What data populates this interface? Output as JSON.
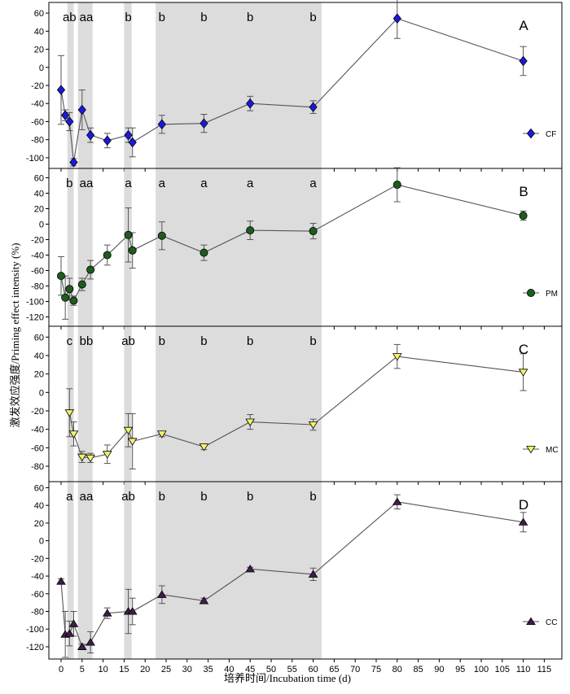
{
  "xlabel": "培养时间/Incubation time (d)",
  "ylabel": "激发效应强度/Priming effect intensity (%)",
  "x_ticks": [
    "0",
    "5",
    "10",
    "15",
    "20",
    "25",
    "30",
    "35",
    "40",
    "45",
    "50",
    "55",
    "60",
    "65",
    "70",
    "75",
    "80",
    "85",
    "90",
    "95",
    "100",
    "105",
    "110",
    "115"
  ],
  "shaded_day_ranges": [
    [
      1.5,
      3
    ],
    [
      4,
      7.5
    ],
    [
      15,
      16.8
    ],
    [
      22.5,
      62
    ]
  ],
  "chart_data": [
    {
      "type": "line",
      "panel": "A",
      "series_name": "CF",
      "marker": "diamond",
      "color": "#1a1adf",
      "x": [
        0,
        1,
        2,
        3,
        5,
        7,
        11,
        16,
        17,
        24,
        34,
        45,
        60,
        80,
        110
      ],
      "y": [
        -25,
        -53,
        -60,
        -105,
        -47,
        -75,
        -81,
        -75,
        -83,
        -63,
        -62,
        -40,
        -44,
        54,
        7
      ],
      "err": [
        38,
        6,
        10,
        4,
        22,
        8,
        8,
        8,
        16,
        10,
        10,
        8,
        7,
        22,
        16
      ],
      "ylim": [
        -110,
        70
      ],
      "yticks": [
        "60",
        "40",
        "20",
        "0",
        "-20",
        "-40",
        "-60",
        "-80",
        "-100"
      ],
      "letters": [
        {
          "x": 2,
          "text": "ab"
        },
        {
          "x": 6,
          "text": "aa"
        },
        {
          "x": 16,
          "text": "b"
        },
        {
          "x": 24,
          "text": "b"
        },
        {
          "x": 34,
          "text": "b"
        },
        {
          "x": 45,
          "text": "b"
        },
        {
          "x": 60,
          "text": "b"
        }
      ]
    },
    {
      "type": "line",
      "panel": "B",
      "series_name": "PM",
      "marker": "circle",
      "color": "#1e5c1e",
      "x": [
        0,
        1,
        2,
        3,
        5,
        7,
        11,
        16,
        17,
        24,
        34,
        45,
        60,
        80,
        110
      ],
      "y": [
        -67,
        -95,
        -84,
        -99,
        -78,
        -59,
        -40,
        -14,
        -34,
        -15,
        -37,
        -8,
        -9,
        51,
        11
      ],
      "err": [
        25,
        28,
        14,
        6,
        8,
        12,
        13,
        35,
        23,
        18,
        10,
        12,
        10,
        22,
        6
      ],
      "ylim": [
        -130,
        70
      ],
      "yticks": [
        "60",
        "40",
        "20",
        "0",
        "-20",
        "-40",
        "-60",
        "-80",
        "-100",
        "-120"
      ],
      "letters": [
        {
          "x": 2,
          "text": "b"
        },
        {
          "x": 6,
          "text": "aa"
        },
        {
          "x": 16,
          "text": "a"
        },
        {
          "x": 24,
          "text": "a"
        },
        {
          "x": 34,
          "text": "a"
        },
        {
          "x": 45,
          "text": "a"
        },
        {
          "x": 60,
          "text": "a"
        }
      ]
    },
    {
      "type": "line",
      "panel": "C",
      "series_name": "MC",
      "marker": "triangle-down",
      "color": "#f3f36a",
      "x": [
        2,
        3,
        5,
        7,
        11,
        16,
        17,
        24,
        34,
        45,
        60,
        80,
        110
      ],
      "y": [
        -22,
        -45,
        -70,
        -71,
        -67,
        -41,
        -53,
        -45,
        -59,
        -32,
        -35,
        39,
        22
      ],
      "err": [
        26,
        13,
        6,
        5,
        10,
        18,
        30,
        3,
        3,
        8,
        6,
        13,
        20
      ],
      "ylim": [
        -95,
        70
      ],
      "yticks": [
        "60",
        "40",
        "20",
        "0",
        "-20",
        "-40",
        "-60",
        "-80"
      ],
      "letters": [
        {
          "x": 2,
          "text": "c"
        },
        {
          "x": 6,
          "text": "bb"
        },
        {
          "x": 16,
          "text": "ab"
        },
        {
          "x": 24,
          "text": "b"
        },
        {
          "x": 34,
          "text": "b"
        },
        {
          "x": 45,
          "text": "b"
        },
        {
          "x": 60,
          "text": "b"
        }
      ]
    },
    {
      "type": "line",
      "panel": "D",
      "series_name": "CC",
      "marker": "triangle-up",
      "color": "#3f1d4a",
      "x": [
        0,
        1,
        2,
        3,
        5,
        7,
        11,
        16,
        17,
        24,
        34,
        45,
        60,
        80,
        110
      ],
      "y": [
        -46,
        -106,
        -105,
        -94,
        -120,
        -115,
        -82,
        -80,
        -80,
        -61,
        -68,
        -32,
        -38,
        44,
        21
      ],
      "err": [
        3,
        26,
        14,
        14,
        3,
        12,
        6,
        25,
        15,
        10,
        3,
        2,
        7,
        8,
        11
      ],
      "ylim": [
        -132,
        65
      ],
      "yticks": [
        "60",
        "40",
        "20",
        "0",
        "-20",
        "-40",
        "-60",
        "-80",
        "-100",
        "-120"
      ],
      "letters": [
        {
          "x": 2,
          "text": "a"
        },
        {
          "x": 6,
          "text": "aa"
        },
        {
          "x": 16,
          "text": "ab"
        },
        {
          "x": 24,
          "text": "b"
        },
        {
          "x": 34,
          "text": "b"
        },
        {
          "x": 45,
          "text": "b"
        },
        {
          "x": 60,
          "text": "b"
        }
      ]
    }
  ]
}
